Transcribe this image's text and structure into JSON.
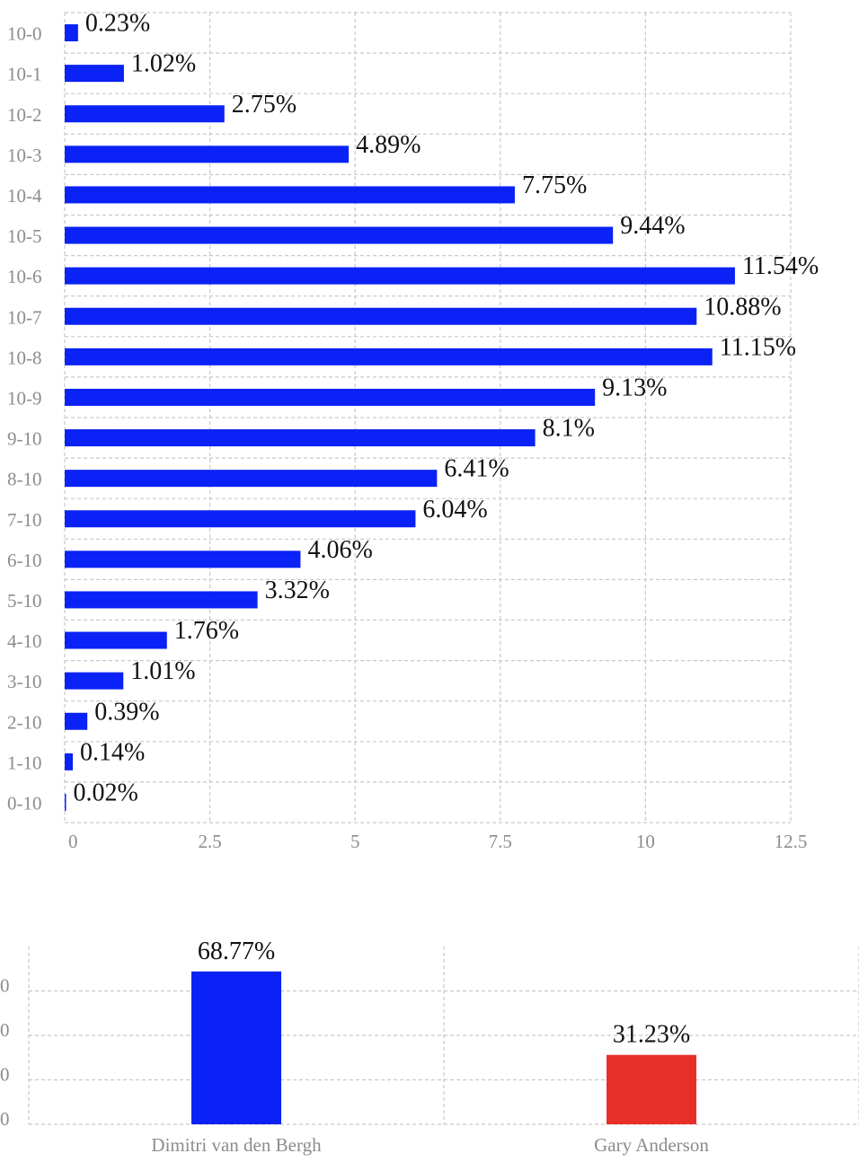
{
  "chart_data": [
    {
      "type": "bar",
      "orientation": "horizontal",
      "categories": [
        "10-0",
        "10-1",
        "10-2",
        "10-3",
        "10-4",
        "10-5",
        "10-6",
        "10-7",
        "10-8",
        "10-9",
        "9-10",
        "8-10",
        "7-10",
        "6-10",
        "5-10",
        "4-10",
        "3-10",
        "2-10",
        "1-10",
        "0-10"
      ],
      "values": [
        0.23,
        1.02,
        2.75,
        4.89,
        7.75,
        9.44,
        11.54,
        10.88,
        11.15,
        9.13,
        8.1,
        6.41,
        6.04,
        4.06,
        3.32,
        1.76,
        1.01,
        0.39,
        0.14,
        0.02
      ],
      "data_labels": [
        "0.23%",
        "1.02%",
        "2.75%",
        "4.89%",
        "7.75%",
        "9.44%",
        "11.54%",
        "10.88%",
        "11.15%",
        "9.13%",
        "8.1%",
        "6.41%",
        "6.04%",
        "4.06%",
        "3.32%",
        "1.76%",
        "1.01%",
        "0.39%",
        "0.14%",
        "0.02%"
      ],
      "x_ticks": [
        "0",
        "2.5",
        "5",
        "7.5",
        "10",
        "12.5"
      ],
      "xlim": [
        0,
        12.5
      ],
      "grid": true,
      "bar_color": "#0a22f5"
    },
    {
      "type": "bar",
      "orientation": "vertical",
      "categories": [
        "Dimitri van den Bergh",
        "Gary Anderson"
      ],
      "values": [
        68.77,
        31.23
      ],
      "data_labels": [
        "68.77%",
        "31.23%"
      ],
      "y_ticks": [
        "0",
        "0",
        "0",
        "0"
      ],
      "ylim": [
        0,
        80
      ],
      "grid": true,
      "bar_colors": [
        "#0a22f5",
        "#e8302a"
      ]
    }
  ]
}
